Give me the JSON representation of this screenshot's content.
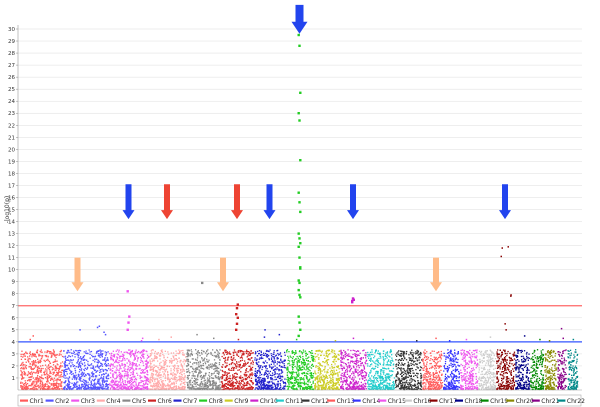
{
  "chart_data": {
    "type": "scatter",
    "title": "",
    "xlabel": "",
    "ylabel": "-log10(p)",
    "ylim": [
      0,
      30
    ],
    "yticks": [
      1,
      2,
      3,
      4,
      5,
      6,
      7,
      8,
      9,
      10,
      11,
      12,
      13,
      14,
      15,
      16,
      17,
      18,
      19,
      20,
      21,
      22,
      23,
      24,
      25,
      26,
      27,
      28,
      29,
      30
    ],
    "grid": true,
    "legend_position": "bottom",
    "threshold_lines": [
      {
        "value": 7,
        "color": "#ff6666"
      },
      {
        "value": 4,
        "color": "#3355ff"
      }
    ],
    "series": [
      {
        "name": "Chr1",
        "color": "#ff5a5a",
        "extra_points": [
          4.2,
          4.5
        ]
      },
      {
        "name": "Chr2",
        "color": "#5555ff",
        "extra_points": [
          4.6,
          5.0,
          5.2,
          5.3,
          4.8
        ]
      },
      {
        "name": "Chr3",
        "color": "#ee55ee",
        "extra_points": [
          4.1,
          4.3
        ]
      },
      {
        "name": "Chr4",
        "color": "#ffaaaa",
        "extra_points": [
          4.2,
          4.4
        ]
      },
      {
        "name": "Chr5",
        "color": "#888888",
        "extra_points": [
          4.3,
          4.6
        ]
      },
      {
        "name": "Chr6",
        "color": "#cc2222",
        "extra_points": [
          4.2
        ]
      },
      {
        "name": "Chr7",
        "color": "#2222cc",
        "extra_points": [
          4.4,
          5.0,
          4.6
        ]
      },
      {
        "name": "Chr8",
        "color": "#22cc22",
        "extra_points": [
          4.2
        ]
      },
      {
        "name": "Chr9",
        "color": "#cccc22",
        "extra_points": [
          4.1
        ]
      },
      {
        "name": "Chr10",
        "color": "#cc22cc",
        "extra_points": [
          4.3
        ]
      },
      {
        "name": "Chr11",
        "color": "#22cccc",
        "extra_points": [
          4.2
        ]
      },
      {
        "name": "Chr12",
        "color": "#333333",
        "extra_points": [
          4.1
        ]
      },
      {
        "name": "Chr13",
        "color": "#ff5a5a",
        "extra_points": [
          4.3
        ]
      },
      {
        "name": "Chr14",
        "color": "#3333ff",
        "extra_points": [
          4.1
        ]
      },
      {
        "name": "Chr15",
        "color": "#ee55ee",
        "extra_points": [
          4.2
        ]
      },
      {
        "name": "Chr16",
        "color": "#cccccc",
        "extra_points": [
          4.4
        ]
      },
      {
        "name": "Chr17",
        "color": "#880000",
        "extra_points": [
          5.0,
          5.5,
          7.8,
          7.9,
          11.1,
          11.8,
          11.9
        ]
      },
      {
        "name": "Chr18",
        "color": "#000088",
        "extra_points": [
          4.5
        ]
      },
      {
        "name": "Chr19",
        "color": "#008800",
        "extra_points": [
          4.2
        ]
      },
      {
        "name": "Chr20",
        "color": "#888800",
        "extra_points": [
          4.1
        ]
      },
      {
        "name": "Chr21",
        "color": "#880088",
        "extra_points": [
          4.3,
          5.1
        ]
      },
      {
        "name": "Chr22",
        "color": "#008888",
        "extra_points": [
          4.2
        ]
      }
    ],
    "highlight_points": [
      {
        "chrom": "Chr3",
        "values": [
          5.0,
          5.6,
          6.1,
          8.2
        ]
      },
      {
        "chrom": "Chr5",
        "values": [
          8.9
        ]
      },
      {
        "chrom": "Chr6",
        "values": [
          5.0,
          5.5,
          6.0,
          6.3,
          6.8,
          7.1
        ]
      },
      {
        "chrom": "Chr8",
        "values": [
          8.3,
          8.9,
          10.2,
          29.5,
          28.6,
          24.7,
          23.0,
          22.4,
          19.1,
          16.4,
          15.6,
          14.8,
          13.0,
          12.6,
          12.2,
          11.9,
          11.0,
          10.1,
          9.1,
          7.9,
          7.7,
          6.1,
          5.6,
          5.0,
          4.5
        ]
      },
      {
        "chrom": "Chr10",
        "values": [
          7.3,
          7.6,
          7.5,
          7.4
        ]
      }
    ],
    "arrows": [
      {
        "chrom": "Chr2",
        "kind": "peach",
        "y_top": 11.0,
        "y_bottom": 8.2
      },
      {
        "chrom": "Chr3",
        "kind": "blue",
        "y_top": 17.1,
        "y_bottom": 14.2
      },
      {
        "chrom": "Chr4",
        "kind": "red",
        "y_top": 17.1,
        "y_bottom": 14.2
      },
      {
        "chrom": "Chr6",
        "kind": "red",
        "y_top": 17.1,
        "y_bottom": 14.2
      },
      {
        "chrom": "Chr6",
        "kind": "peach",
        "y_top": 11.0,
        "y_bottom": 8.2
      },
      {
        "chrom": "Chr7",
        "kind": "blue",
        "y_top": 17.1,
        "y_bottom": 14.2
      },
      {
        "chrom": "Chr8",
        "kind": "blue",
        "y_top": 32.0,
        "y_bottom": 29.6
      },
      {
        "chrom": "Chr10",
        "kind": "blue",
        "y_top": 17.1,
        "y_bottom": 14.2
      },
      {
        "chrom": "Chr13",
        "kind": "peach",
        "y_top": 11.0,
        "y_bottom": 8.2
      },
      {
        "chrom": "Chr17",
        "kind": "blue",
        "y_top": 17.1,
        "y_bottom": 14.2
      }
    ],
    "arrow_colors": {
      "blue": "#2244ee",
      "red": "#ee4433",
      "peach": "#ffbb88"
    }
  }
}
